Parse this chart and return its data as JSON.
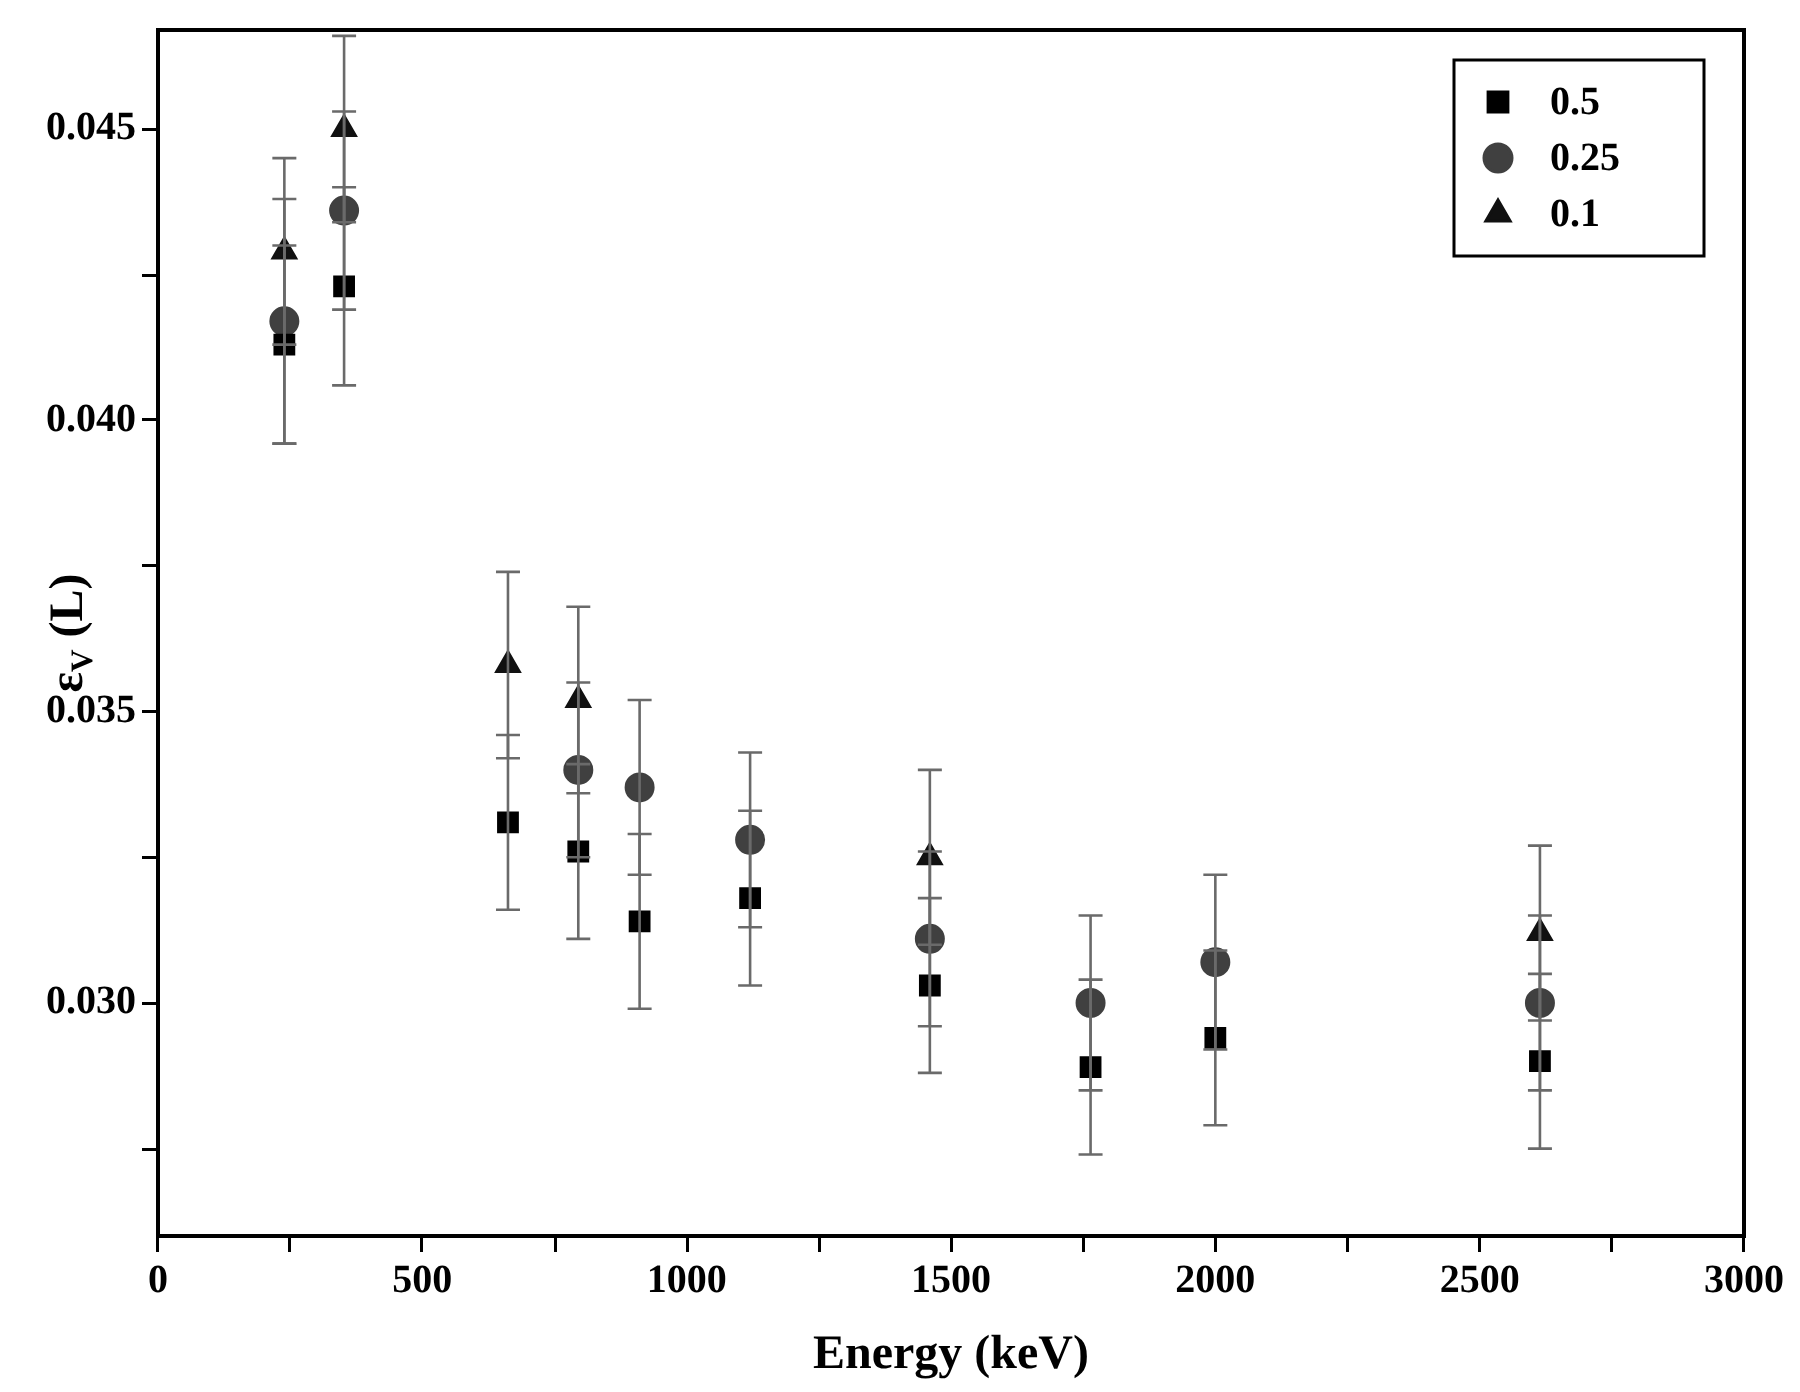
{
  "chart_data": {
    "type": "scatter",
    "xlabel": "Energy (keV)",
    "ylabel": "ε$_{V}$ (L)",
    "x": [
      239,
      352,
      662,
      795,
      911,
      1120,
      1460,
      1764,
      2000,
      2614
    ],
    "series": [
      {
        "name": "0.5",
        "color": "#000000",
        "marker": "square",
        "values": [
          0.0413,
          0.0423,
          0.0331,
          0.0326,
          0.0314,
          0.0318,
          0.0303,
          0.0289,
          0.0294,
          0.029
        ],
        "errors": [
          0.0017,
          0.0017,
          0.0015,
          0.0015,
          0.0015,
          0.0015,
          0.0015,
          0.0015,
          0.0015,
          0.0015
        ]
      },
      {
        "name": "0.25",
        "color": "#404040",
        "marker": "circle",
        "values": [
          0.0417,
          0.0436,
          null,
          0.034,
          0.0337,
          0.0328,
          0.0311,
          0.03,
          0.0307,
          0.03
        ],
        "errors": [
          0.0021,
          0.0017,
          null,
          0.0015,
          0.0015,
          0.0015,
          0.0015,
          0.0015,
          0.0015,
          0.0015
        ]
      },
      {
        "name": "0.1",
        "color": "#111111",
        "marker": "triangle",
        "values": [
          0.0429,
          0.045,
          0.0358,
          0.0352,
          null,
          null,
          0.0325,
          null,
          null,
          0.0312
        ],
        "errors": [
          0.0016,
          0.0016,
          0.0016,
          0.0016,
          null,
          null,
          0.0015,
          null,
          null,
          0.0015
        ]
      }
    ],
    "xlim": [
      0,
      3000
    ],
    "xticks": [
      0,
      {
        "value": 250,
        "label": null
      },
      500,
      {
        "value": 750,
        "label": null
      },
      1000,
      {
        "value": 1250,
        "label": null
      },
      1500,
      {
        "value": 1750,
        "label": null
      },
      2000,
      {
        "value": 2250,
        "label": null
      },
      2500,
      {
        "value": 2750,
        "label": null
      },
      3000
    ],
    "ylim": [
      0.026,
      0.0467
    ],
    "yticks": [
      {
        "value": 0.0275,
        "label": null
      },
      {
        "value": 0.03,
        "label": "0.030"
      },
      {
        "value": 0.0325,
        "label": null
      },
      {
        "value": 0.035,
        "label": "0.035"
      },
      {
        "value": 0.0375,
        "label": null
      },
      {
        "value": 0.04,
        "label": "0.040"
      },
      {
        "value": 0.0425,
        "label": null
      },
      {
        "value": 0.045,
        "label": "0.045"
      }
    ],
    "grid": false,
    "legend": "top right"
  }
}
